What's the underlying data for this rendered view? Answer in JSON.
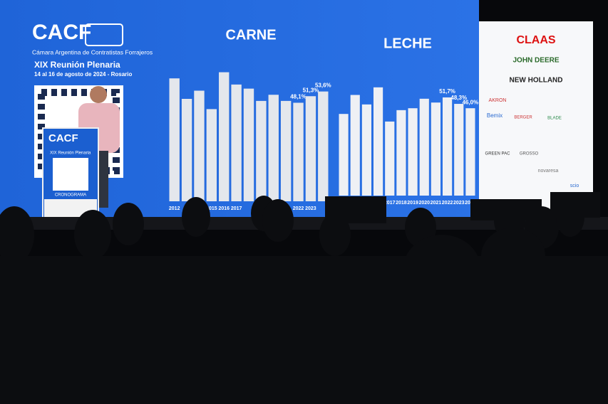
{
  "header": {
    "logo": "CACF",
    "org": "Cámara Argentina de Contratistas Forrajeros",
    "event": "XIX Reunión Plenaria",
    "dates": "14 al 16 de agosto de 2024 - Rosario"
  },
  "podium": {
    "logo": "CACF",
    "event": "XIX Reunión Plenaria",
    "button": "CRONOGRAMA"
  },
  "charts": [
    {
      "type": "bar",
      "title": "CARNE",
      "categories": [
        "2012",
        null,
        null,
        "2015",
        "2016",
        "2017",
        null,
        null,
        null,
        null,
        "2022",
        "2023",
        null
      ],
      "values": [
        60,
        50,
        54,
        45,
        63,
        57,
        55,
        49,
        52,
        49,
        48.1,
        51.3,
        53.6
      ],
      "value_labels": [
        null,
        null,
        null,
        null,
        null,
        null,
        null,
        null,
        null,
        null,
        "48,1%",
        "51,3%",
        "53,6%"
      ],
      "color": "#e4e7ec"
    },
    {
      "type": "bar",
      "title": "LECHE",
      "categories": [
        null,
        null,
        null,
        "2016",
        "2017",
        "2018",
        "2019",
        "2020",
        "2021",
        "2022",
        "2023",
        "2024"
      ],
      "values": [
        43,
        53,
        48,
        57,
        39,
        45,
        46,
        51,
        49,
        51.7,
        48.3,
        46.0
      ],
      "value_labels": [
        null,
        null,
        null,
        null,
        null,
        null,
        null,
        null,
        null,
        "51,7%",
        "48,3%",
        "46,0%"
      ],
      "color": "#eef0f4"
    }
  ],
  "sponsors": [
    "CLAAS",
    "JOHN DEERE",
    "NEW HOLLAND",
    "AKRON",
    "Bemix",
    "BERGER",
    "BLADE",
    "GREEN PAC",
    "GROSSO",
    "novaresa",
    "scio"
  ]
}
